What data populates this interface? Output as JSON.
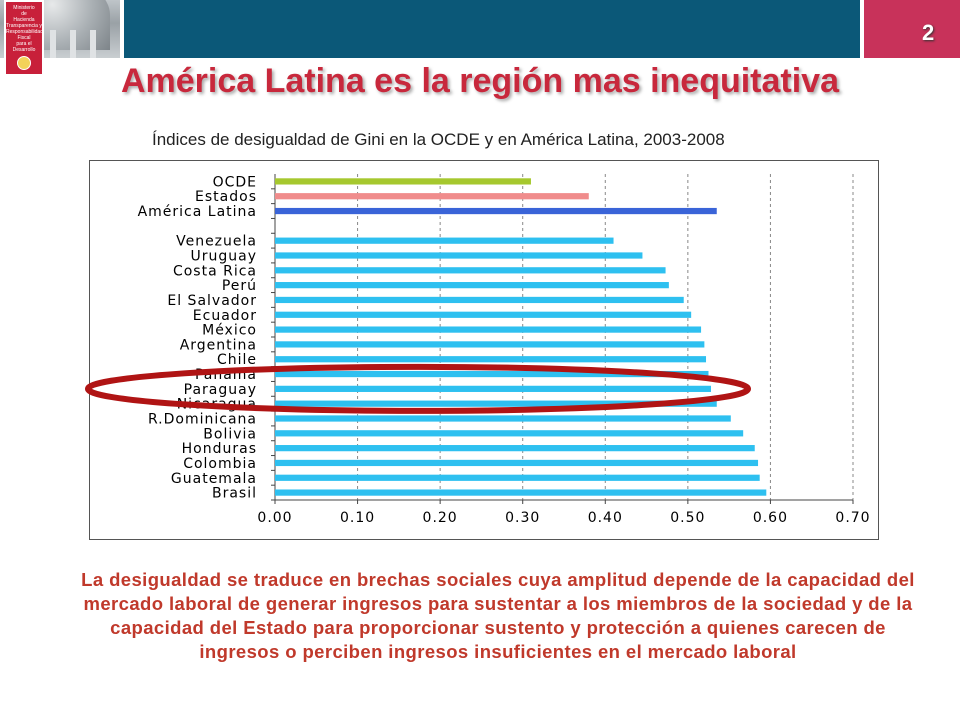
{
  "header": {
    "logo_lines": [
      "Ministerio",
      "de",
      "Hacienda",
      "Transparencia y",
      "Responsabilidad",
      "Fiscal",
      "para el",
      "Desarrollo"
    ],
    "page_number": "2",
    "title": "América Latina es la región mas inequitativa"
  },
  "colors": {
    "bar_blue": "#2ec0f0",
    "ocde": "#a6c82e",
    "estados": "#f08c8c",
    "america_latina": "#3a64d8",
    "title": "#c8283c",
    "body_text": "#c0392b",
    "ellipse": "#b01414"
  },
  "chart_data": {
    "type": "bar",
    "orientation": "horizontal",
    "title": "Índices de desigualdad de Gini en la OCDE y en América Latina, 2003-2008",
    "categories": [
      "OCDE",
      "Estados",
      "América Latina",
      "",
      "Venezuela",
      "Uruguay",
      "Costa Rica",
      "Perú",
      "El Salvador",
      "Ecuador",
      "México",
      "Argentina",
      "Chile",
      "Panamá",
      "Paraguay",
      "Nicaragua",
      "R.Dominicana",
      "Bolivia",
      "Honduras",
      "Colombia",
      "Guatemala",
      "Brasil"
    ],
    "values": [
      0.31,
      0.38,
      0.535,
      null,
      0.41,
      0.445,
      0.473,
      0.477,
      0.495,
      0.504,
      0.516,
      0.52,
      0.522,
      0.525,
      0.528,
      0.535,
      0.552,
      0.567,
      0.581,
      0.585,
      0.587,
      0.595
    ],
    "bar_colors": [
      "#a6c82e",
      "#f08c8c",
      "#3a64d8",
      null,
      "#2ec0f0",
      "#2ec0f0",
      "#2ec0f0",
      "#2ec0f0",
      "#2ec0f0",
      "#2ec0f0",
      "#2ec0f0",
      "#2ec0f0",
      "#2ec0f0",
      "#2ec0f0",
      "#2ec0f0",
      "#2ec0f0",
      "#2ec0f0",
      "#2ec0f0",
      "#2ec0f0",
      "#2ec0f0",
      "#2ec0f0",
      "#2ec0f0"
    ],
    "x_ticks": [
      "0.00",
      "0.10",
      "0.20",
      "0.30",
      "0.40",
      "0.50",
      "0.60",
      "0.70"
    ],
    "xlim": [
      0,
      0.7
    ],
    "grid": "vertical dashed",
    "highlight": "ellipse around Panamá, Paraguay, Nicaragua"
  },
  "body_text": "La desigualdad se traduce en brechas sociales cuya amplitud depende de la capacidad del mercado laboral de generar ingresos para sustentar a los miembros de la sociedad y de la capacidad del Estado para proporcionar sustento y protección a quienes carecen de ingresos o perciben ingresos insuficientes en el mercado laboral"
}
